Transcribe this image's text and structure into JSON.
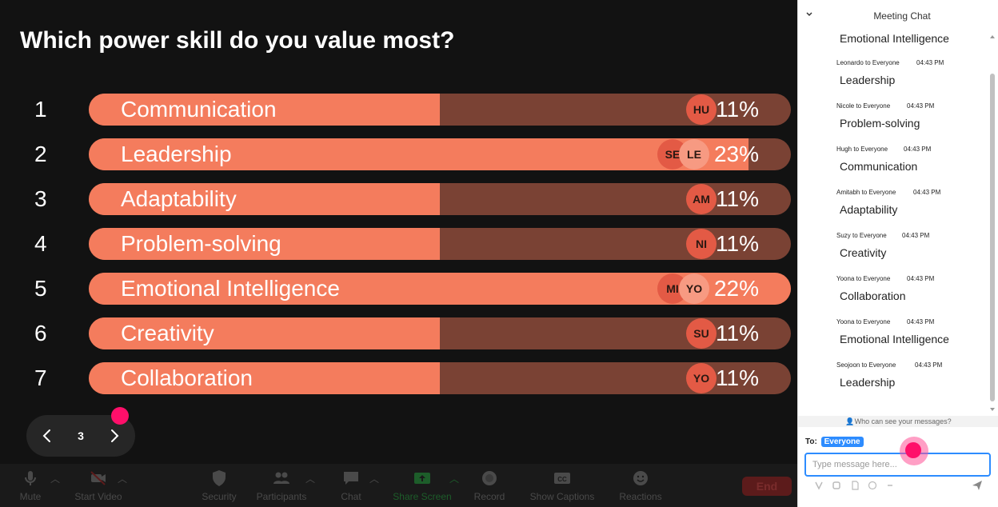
{
  "question": "Which power skill do you value most?",
  "poll": {
    "options": [
      {
        "num": "1",
        "label": "Communication",
        "pct": "11%",
        "fill": 0.5,
        "avatars": [
          "HU"
        ]
      },
      {
        "num": "2",
        "label": "Leadership",
        "pct": "23%",
        "fill": 0.94,
        "avatars": [
          "SE",
          "LE"
        ]
      },
      {
        "num": "3",
        "label": "Adaptability",
        "pct": "11%",
        "fill": 0.5,
        "avatars": [
          "AM"
        ]
      },
      {
        "num": "4",
        "label": "Problem-solving",
        "pct": "11%",
        "fill": 0.5,
        "avatars": [
          "NI"
        ]
      },
      {
        "num": "5",
        "label": "Emotional Intelligence",
        "pct": "22%",
        "fill": 1.0,
        "avatars": [
          "MI",
          "YO"
        ]
      },
      {
        "num": "6",
        "label": "Creativity",
        "pct": "11%",
        "fill": 0.5,
        "avatars": [
          "SU"
        ]
      },
      {
        "num": "7",
        "label": "Collaboration",
        "pct": "11%",
        "fill": 0.5,
        "avatars": [
          "YO"
        ]
      }
    ]
  },
  "pager": {
    "page": "3"
  },
  "toolbar": {
    "mute": "Mute",
    "start_video": "Start Video",
    "security": "Security",
    "participants": "Participants",
    "chat": "Chat",
    "share_screen": "Share Screen",
    "record": "Record",
    "show_captions": "Show Captions",
    "reactions": "Reactions",
    "end": "End"
  },
  "chat": {
    "title": "Meeting Chat",
    "first_text": "Emotional Intelligence",
    "messages": [
      {
        "from": "Leonardo to Everyone",
        "time": "04:43 PM",
        "text": "Leadership"
      },
      {
        "from": "Nicole to Everyone",
        "time": "04:43 PM",
        "text": "Problem-solving"
      },
      {
        "from": "Hugh to Everyone",
        "time": "04:43 PM",
        "text": "Communication"
      },
      {
        "from": "Amitabh to Everyone",
        "time": "04:43 PM",
        "text": "Adaptability"
      },
      {
        "from": "Suzy to Everyone",
        "time": "04:43 PM",
        "text": "Creativity"
      },
      {
        "from": "Yoona to Everyone",
        "time": "04:43 PM",
        "text": "Collaboration"
      },
      {
        "from": "Yoona to Everyone",
        "time": "04:43 PM",
        "text": "Emotional Intelligence"
      },
      {
        "from": "Seojoon to Everyone",
        "time": "04:43 PM",
        "text": "Leadership"
      }
    ],
    "who_can_see": "Who can see your messages?",
    "to_label": "To:",
    "to_value": "Everyone",
    "input_placeholder": "Type message here..."
  }
}
